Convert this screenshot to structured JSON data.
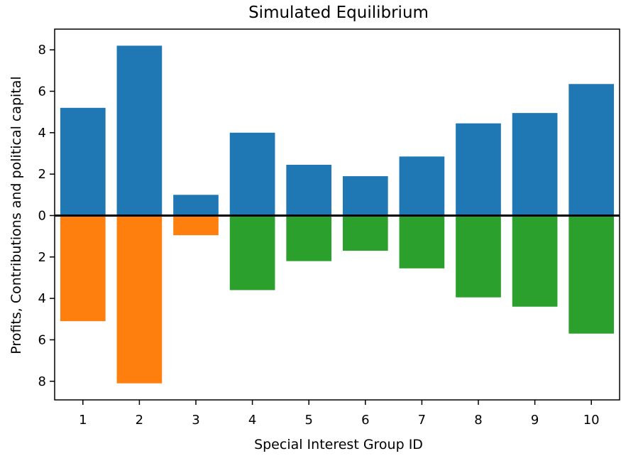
{
  "chart_data": {
    "type": "bar",
    "title": "Simulated Equilibrium",
    "xlabel": "Special Interest Group ID",
    "ylabel": "Profits, Contributions and political capital",
    "categories": [
      "1",
      "2",
      "3",
      "4",
      "5",
      "6",
      "7",
      "8",
      "9",
      "10"
    ],
    "series": [
      {
        "color": "#1f77b4",
        "values": [
          5.2,
          8.2,
          1.0,
          4.0,
          2.45,
          1.9,
          2.85,
          4.45,
          4.95,
          6.35
        ]
      },
      {
        "color": "#ff7f0e",
        "values": [
          -5.1,
          -8.1,
          -0.95,
          0,
          0,
          0,
          0,
          0,
          0,
          0
        ]
      },
      {
        "color": "#2ca02c",
        "values": [
          0,
          0,
          0,
          -3.6,
          -2.2,
          -1.7,
          -2.55,
          -3.95,
          -4.4,
          -5.7
        ]
      }
    ],
    "ylim": [
      -8.9,
      9.0
    ],
    "yticks": [
      -8,
      -6,
      -4,
      -2,
      0,
      2,
      4,
      6,
      8
    ],
    "ytick_labels": [
      "8",
      "6",
      "4",
      "2",
      "0",
      "2",
      "4",
      "6",
      "8"
    ],
    "zero_line": true,
    "grid": false,
    "legend": "none"
  }
}
